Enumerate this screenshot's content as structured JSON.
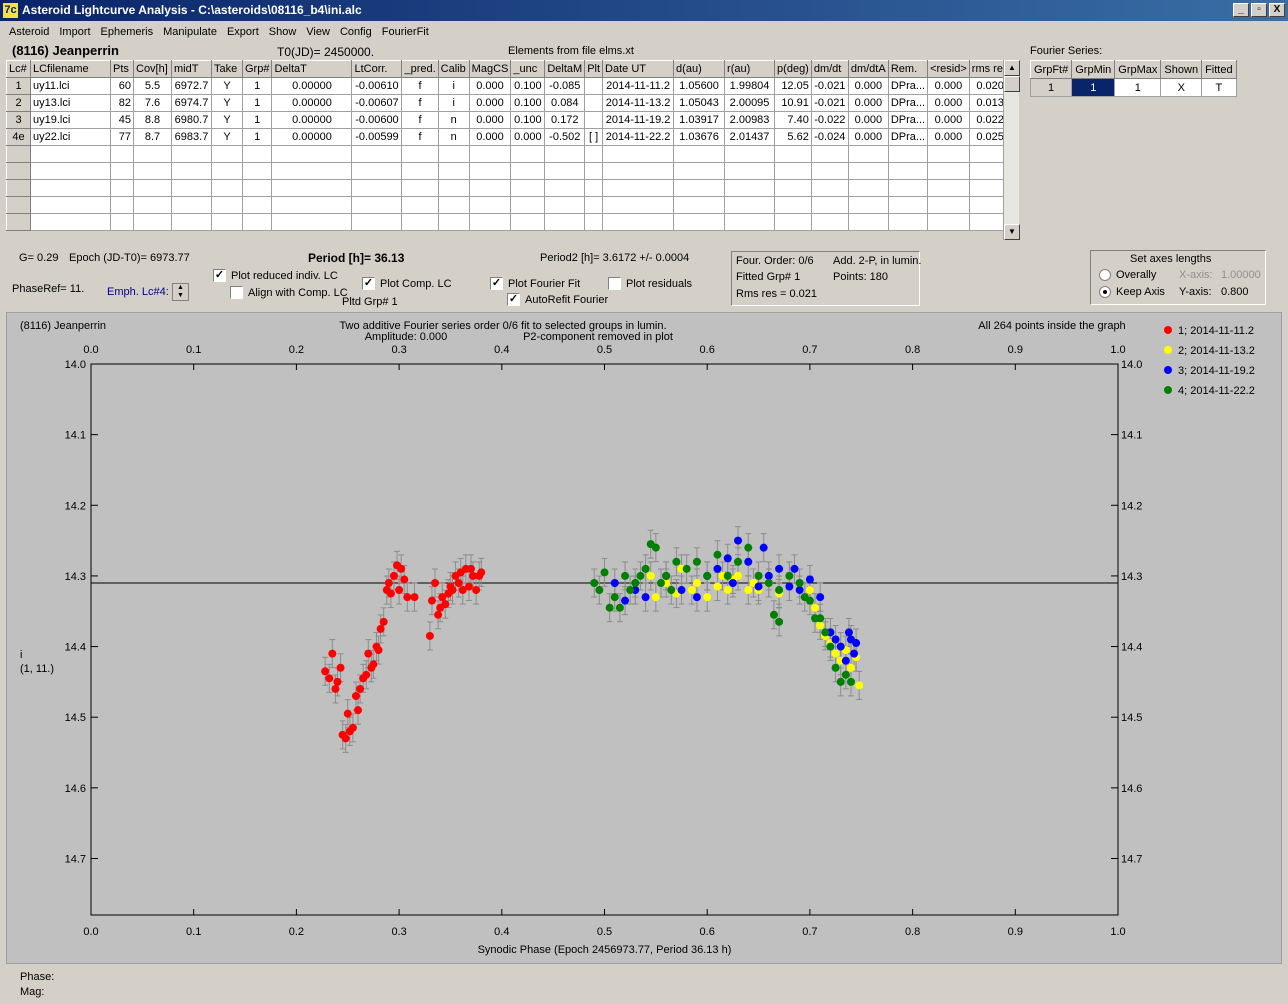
{
  "window": {
    "title": "Asteroid Lightcurve Analysis - C:\\asteroids\\08116_b4\\ini.alc",
    "icon": "7c",
    "min": "_",
    "max": "▫",
    "close": "X"
  },
  "menu": [
    "Asteroid",
    "Import",
    "Ephemeris",
    "Manipulate",
    "Export",
    "Show",
    "View",
    "Config",
    "FourierFit"
  ],
  "header": {
    "asteroid": "(8116) Jeanperrin",
    "t0": "T0(JD)= 2450000.",
    "elements": "Elements from file elms.xt",
    "fourier_title": "Fourier Series:"
  },
  "table": {
    "columns": [
      "Lc#",
      "LCfilename",
      "Pts",
      "Cov[h]",
      "midT",
      "Take",
      "Grp#",
      "DeltaT",
      "LtCorr.",
      "_pred.",
      "Calib",
      "MagCS",
      "_unc",
      "DeltaM",
      "Plt",
      "Date UT",
      "d(au)",
      "r(au)",
      "p(deg)",
      "dm/dt",
      "dm/dtA",
      "Rem.",
      "<resid>",
      "rms res"
    ],
    "rows": [
      [
        "1",
        "uy11.lci",
        "60",
        "5.5",
        "6972.7",
        "Y",
        "1",
        "0.00000",
        "-0.00610",
        "f",
        "i",
        "0.000",
        "0.100",
        "-0.085",
        "",
        "2014-11-11.2",
        "1.05600",
        "1.99804",
        "12.05",
        "-0.021",
        "0.000",
        "DPra...",
        "0.000",
        "0.020"
      ],
      [
        "2",
        "uy13.lci",
        "82",
        "7.6",
        "6974.7",
        "Y",
        "1",
        "0.00000",
        "-0.00607",
        "f",
        "i",
        "0.000",
        "0.100",
        "0.084",
        "",
        "2014-11-13.2",
        "1.05043",
        "2.00095",
        "10.91",
        "-0.021",
        "0.000",
        "DPra...",
        "0.000",
        "0.013"
      ],
      [
        "3",
        "uy19.lci",
        "45",
        "8.8",
        "6980.7",
        "Y",
        "1",
        "0.00000",
        "-0.00600",
        "f",
        "n",
        "0.000",
        "0.100",
        "0.172",
        "",
        "2014-11-19.2",
        "1.03917",
        "2.00983",
        "7.40",
        "-0.022",
        "0.000",
        "DPra...",
        "0.000",
        "0.022"
      ],
      [
        "4e",
        "uy22.lci",
        "77",
        "8.7",
        "6983.7",
        "Y",
        "1",
        "0.00000",
        "-0.00599",
        "f",
        "n",
        "0.000",
        "0.000",
        "-0.502",
        "[ ]",
        "2014-11-22.2",
        "1.03676",
        "2.01437",
        "5.62",
        "-0.024",
        "0.000",
        "DPra...",
        "0.000",
        "0.025"
      ]
    ]
  },
  "fourier": {
    "columns": [
      "GrpFt#",
      "GrpMin",
      "GrpMax",
      "Shown",
      "Fitted"
    ],
    "row": [
      "1",
      "1",
      "1",
      "X",
      "T"
    ]
  },
  "info": {
    "g": "G= 0.29",
    "epoch": "Epoch (JD-T0)= 6973.77",
    "period": "Period [h]= 36.13",
    "period2": "Period2 [h]= 3.6172 +/- 0.0004",
    "phaseref": "PhaseRef= 11.",
    "emph": "Emph. Lc#4:",
    "pltd": "Pltd Grp#  1",
    "plot_reduced": "Plot reduced indiv. LC",
    "align": "Align with Comp. LC",
    "plot_comp": "Plot Comp. LC",
    "plot_fourier": "Plot Fourier Fit",
    "autorefit": "AutoRefit Fourier",
    "plot_resid": "Plot residuals",
    "four_order": "Four. Order:  0/6",
    "add2p": "Add. 2-P, in lumin.",
    "fitted_grp": "Fitted Grp# 1",
    "points": "Points: 180",
    "rms": "Rms res     = 0.021",
    "axes_title": "Set axes lengths",
    "overally": "Overally",
    "keep_axis": "Keep Axis",
    "xaxis_lbl": "X-axis:",
    "xaxis_val": "1.00000",
    "yaxis_lbl": "Y-axis:",
    "yaxis_val": "0.800",
    "check": "✓"
  },
  "status": {
    "phase": "Phase:",
    "mag": "Mag:"
  },
  "chart_data": {
    "type": "scatter",
    "corner_label": "(8116) Jeanperrin",
    "title": "Two additive Fourier series order 0/6 fit to selected groups in lumin.",
    "subtitle_left": "Amplitude: 0.000",
    "subtitle_right": "P2-component removed in plot",
    "note": "All 264 points inside the graph",
    "xlabel": "Synodic Phase (Epoch 2456973.77, Period 36.13 h)",
    "ylabel": [
      "i",
      "(1, 11.)"
    ],
    "xlim": [
      0.0,
      1.0
    ],
    "ylim": [
      14.0,
      14.78
    ],
    "xticks": [
      "0.0",
      "0.1",
      "0.2",
      "0.3",
      "0.4",
      "0.5",
      "0.6",
      "0.7",
      "0.8",
      "0.9",
      "1.0"
    ],
    "yticks": [
      "14.0",
      "14.1",
      "14.2",
      "14.3",
      "14.4",
      "14.5",
      "14.6",
      "14.7"
    ],
    "fit_line_y": 14.31,
    "colors": [
      "#ff0000",
      "#ffff00",
      "#0000ff",
      "#008000"
    ],
    "series": [
      {
        "name": "1; 2014-11-11.2",
        "points": [
          [
            0.228,
            14.435
          ],
          [
            0.232,
            14.445
          ],
          [
            0.235,
            14.41
          ],
          [
            0.238,
            14.46
          ],
          [
            0.24,
            14.45
          ],
          [
            0.243,
            14.43
          ],
          [
            0.245,
            14.525
          ],
          [
            0.248,
            14.53
          ],
          [
            0.25,
            14.495
          ],
          [
            0.252,
            14.52
          ],
          [
            0.255,
            14.515
          ],
          [
            0.258,
            14.47
          ],
          [
            0.26,
            14.49
          ],
          [
            0.262,
            14.46
          ],
          [
            0.265,
            14.445
          ],
          [
            0.268,
            14.44
          ],
          [
            0.27,
            14.41
          ],
          [
            0.273,
            14.43
          ],
          [
            0.275,
            14.425
          ],
          [
            0.278,
            14.4
          ],
          [
            0.28,
            14.405
          ],
          [
            0.282,
            14.375
          ],
          [
            0.285,
            14.365
          ],
          [
            0.288,
            14.32
          ],
          [
            0.29,
            14.31
          ],
          [
            0.292,
            14.325
          ],
          [
            0.295,
            14.3
          ],
          [
            0.298,
            14.285
          ],
          [
            0.3,
            14.32
          ],
          [
            0.302,
            14.29
          ],
          [
            0.305,
            14.305
          ],
          [
            0.308,
            14.33
          ],
          [
            0.315,
            14.33
          ],
          [
            0.33,
            14.385
          ],
          [
            0.332,
            14.335
          ],
          [
            0.335,
            14.31
          ],
          [
            0.338,
            14.355
          ],
          [
            0.34,
            14.345
          ],
          [
            0.342,
            14.33
          ],
          [
            0.345,
            14.34
          ],
          [
            0.348,
            14.325
          ],
          [
            0.35,
            14.315
          ],
          [
            0.352,
            14.32
          ],
          [
            0.355,
            14.3
          ],
          [
            0.358,
            14.31
          ],
          [
            0.36,
            14.295
          ],
          [
            0.362,
            14.32
          ],
          [
            0.365,
            14.29
          ],
          [
            0.368,
            14.315
          ],
          [
            0.37,
            14.29
          ],
          [
            0.372,
            14.3
          ],
          [
            0.375,
            14.32
          ],
          [
            0.378,
            14.3
          ],
          [
            0.38,
            14.295
          ]
        ]
      },
      {
        "name": "2; 2014-11-13.2",
        "points": [
          [
            0.53,
            14.32
          ],
          [
            0.545,
            14.3
          ],
          [
            0.55,
            14.33
          ],
          [
            0.56,
            14.31
          ],
          [
            0.57,
            14.325
          ],
          [
            0.575,
            14.29
          ],
          [
            0.585,
            14.32
          ],
          [
            0.59,
            14.31
          ],
          [
            0.6,
            14.33
          ],
          [
            0.61,
            14.315
          ],
          [
            0.615,
            14.3
          ],
          [
            0.62,
            14.32
          ],
          [
            0.625,
            14.305
          ],
          [
            0.63,
            14.3
          ],
          [
            0.64,
            14.32
          ],
          [
            0.645,
            14.31
          ],
          [
            0.65,
            14.32
          ],
          [
            0.66,
            14.31
          ],
          [
            0.67,
            14.325
          ],
          [
            0.68,
            14.3
          ],
          [
            0.7,
            14.32
          ],
          [
            0.705,
            14.345
          ],
          [
            0.71,
            14.37
          ],
          [
            0.715,
            14.385
          ],
          [
            0.72,
            14.395
          ],
          [
            0.725,
            14.41
          ],
          [
            0.73,
            14.42
          ],
          [
            0.735,
            14.405
          ],
          [
            0.74,
            14.43
          ],
          [
            0.745,
            14.415
          ],
          [
            0.748,
            14.455
          ]
        ]
      },
      {
        "name": "3; 2014-11-19.2",
        "points": [
          [
            0.51,
            14.31
          ],
          [
            0.52,
            14.335
          ],
          [
            0.53,
            14.32
          ],
          [
            0.54,
            14.33
          ],
          [
            0.56,
            14.3
          ],
          [
            0.575,
            14.32
          ],
          [
            0.59,
            14.33
          ],
          [
            0.6,
            14.3
          ],
          [
            0.61,
            14.29
          ],
          [
            0.62,
            14.275
          ],
          [
            0.625,
            14.31
          ],
          [
            0.63,
            14.25
          ],
          [
            0.64,
            14.28
          ],
          [
            0.65,
            14.315
          ],
          [
            0.655,
            14.26
          ],
          [
            0.66,
            14.3
          ],
          [
            0.67,
            14.29
          ],
          [
            0.68,
            14.315
          ],
          [
            0.685,
            14.29
          ],
          [
            0.69,
            14.32
          ],
          [
            0.7,
            14.305
          ],
          [
            0.71,
            14.33
          ],
          [
            0.72,
            14.38
          ],
          [
            0.725,
            14.39
          ],
          [
            0.73,
            14.4
          ],
          [
            0.735,
            14.42
          ],
          [
            0.738,
            14.38
          ],
          [
            0.74,
            14.39
          ],
          [
            0.743,
            14.41
          ],
          [
            0.745,
            14.395
          ]
        ]
      },
      {
        "name": "4; 2014-11-22.2",
        "points": [
          [
            0.49,
            14.31
          ],
          [
            0.495,
            14.32
          ],
          [
            0.5,
            14.295
          ],
          [
            0.505,
            14.345
          ],
          [
            0.51,
            14.33
          ],
          [
            0.515,
            14.345
          ],
          [
            0.52,
            14.3
          ],
          [
            0.525,
            14.32
          ],
          [
            0.53,
            14.31
          ],
          [
            0.535,
            14.3
          ],
          [
            0.54,
            14.29
          ],
          [
            0.545,
            14.255
          ],
          [
            0.55,
            14.26
          ],
          [
            0.555,
            14.31
          ],
          [
            0.56,
            14.3
          ],
          [
            0.565,
            14.32
          ],
          [
            0.57,
            14.28
          ],
          [
            0.58,
            14.29
          ],
          [
            0.59,
            14.28
          ],
          [
            0.6,
            14.3
          ],
          [
            0.61,
            14.27
          ],
          [
            0.62,
            14.3
          ],
          [
            0.63,
            14.28
          ],
          [
            0.64,
            14.26
          ],
          [
            0.65,
            14.3
          ],
          [
            0.66,
            14.31
          ],
          [
            0.67,
            14.32
          ],
          [
            0.68,
            14.3
          ],
          [
            0.69,
            14.31
          ],
          [
            0.695,
            14.33
          ],
          [
            0.7,
            14.335
          ],
          [
            0.705,
            14.36
          ],
          [
            0.71,
            14.36
          ],
          [
            0.715,
            14.38
          ],
          [
            0.72,
            14.4
          ],
          [
            0.725,
            14.43
          ],
          [
            0.73,
            14.45
          ],
          [
            0.735,
            14.44
          ],
          [
            0.74,
            14.45
          ],
          [
            0.665,
            14.355
          ],
          [
            0.67,
            14.365
          ]
        ]
      }
    ]
  }
}
